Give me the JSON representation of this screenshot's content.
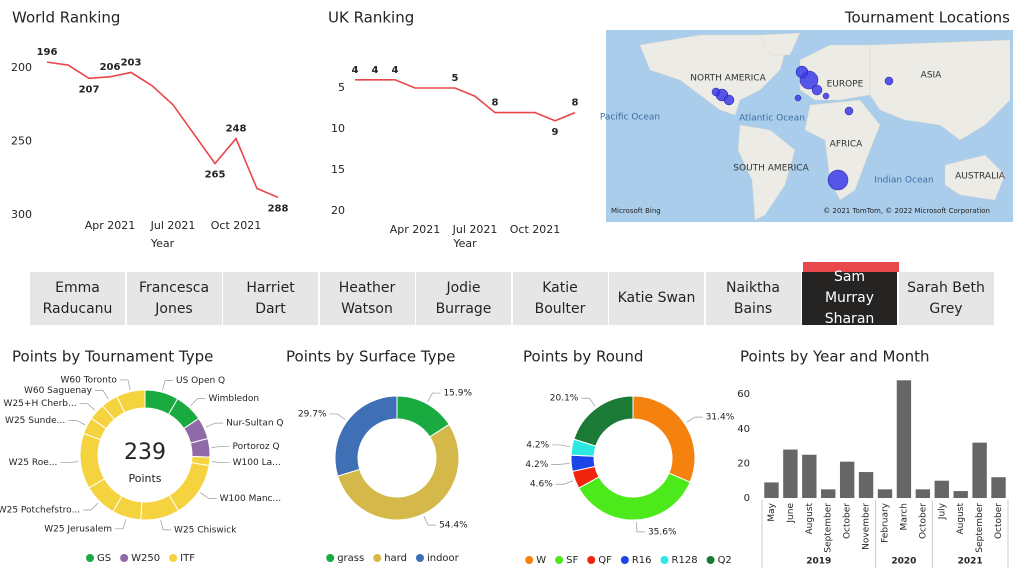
{
  "chart_data": [
    {
      "type": "line",
      "title": "World Ranking",
      "xlabel": "Year",
      "color": "#e8474b",
      "x": [
        "2021-01",
        "2021-02",
        "2021-03",
        "2021-04",
        "2021-05",
        "2021-06",
        "2021-07",
        "2021-08",
        "2021-09",
        "2021-10",
        "2021-11",
        "2021-12"
      ],
      "values": [
        196,
        198,
        207,
        206,
        203,
        212,
        225,
        245,
        265,
        248,
        282,
        288
      ],
      "value_labels": [
        "196",
        null,
        "207",
        "206",
        "203",
        null,
        null,
        null,
        "265",
        "248",
        null,
        "288"
      ],
      "xlim": [
        "2020-12",
        "2022-01"
      ],
      "xticks": [
        {
          "value": "2021-04",
          "label": "Apr 2021"
        },
        {
          "value": "2021-07",
          "label": "Jul 2021"
        },
        {
          "value": "2021-10",
          "label": "Oct 2021"
        }
      ],
      "ylim": [
        300,
        180
      ],
      "yticks": [
        200,
        250,
        300
      ],
      "grid": false
    },
    {
      "type": "line",
      "title": "UK Ranking",
      "xlabel": "Year",
      "color": "#e8474b",
      "x": [
        "2021-01",
        "2021-02",
        "2021-03",
        "2021-04",
        "2021-05",
        "2021-06",
        "2021-07",
        "2021-08",
        "2021-09",
        "2021-10",
        "2021-11",
        "2021-12"
      ],
      "values": [
        4,
        4,
        4,
        5,
        5,
        5,
        6,
        8,
        8,
        8,
        9,
        8
      ],
      "value_labels": [
        "4",
        "4",
        "4",
        null,
        null,
        "5",
        null,
        "8",
        null,
        null,
        "9",
        "8"
      ],
      "xlim": [
        "2020-12",
        "2022-01"
      ],
      "xticks": [
        {
          "value": "2021-04",
          "label": "Apr 2021"
        },
        {
          "value": "2021-07",
          "label": "Jul 2021"
        },
        {
          "value": "2021-10",
          "label": "Oct 2021"
        }
      ],
      "ylim": [
        21,
        1
      ],
      "yticks": [
        5,
        10,
        15,
        20
      ],
      "grid": false
    },
    {
      "type": "donut",
      "title": "Points by Tournament Type",
      "total": 239,
      "total_label": "Points",
      "categories": [
        "US Open Q",
        "Wimbledon",
        "Nur-Sultan Q",
        "Portoroz Q",
        "W100 La...",
        "W100 Manc...",
        "W25 Chiswick",
        "W25 Jerusalem",
        "W25 Potchefstro...",
        "W25 Roe...",
        "W25 Sunde...",
        "W25+H Cherb...",
        "W60 Saguenay",
        "W60 Toronto"
      ],
      "values": [
        20,
        17,
        13,
        11,
        5,
        33,
        23,
        17,
        20,
        33,
        10,
        10,
        10,
        17
      ],
      "colors": [
        "#1aab40",
        "#1aab40",
        "#8f6aa6",
        "#8f6aa6",
        "#f5d33f",
        "#f5d33f",
        "#f5d33f",
        "#f5d33f",
        "#f5d33f",
        "#f5d33f",
        "#f5d33f",
        "#f5d33f",
        "#f5d33f",
        "#f5d33f"
      ],
      "legend": [
        {
          "name": "GS",
          "color": "#1aab40"
        },
        {
          "name": "W250",
          "color": "#8f6aa6"
        },
        {
          "name": "ITF",
          "color": "#f5d33f"
        }
      ]
    },
    {
      "type": "donut",
      "title": "Points by Surface Type",
      "categories": [
        "grass",
        "hard",
        "indoor"
      ],
      "values": [
        15.9,
        54.4,
        29.7
      ],
      "value_labels": [
        "15.9%",
        "54.4%",
        "29.7%"
      ],
      "colors": [
        "#1aab40",
        "#d4b84a",
        "#3f6fb5"
      ]
    },
    {
      "type": "donut",
      "title": "Points by Round",
      "categories": [
        "W",
        "SF",
        "QF",
        "R16",
        "R128",
        "Q2"
      ],
      "values": [
        31.4,
        35.6,
        4.6,
        4.2,
        4.2,
        20.1
      ],
      "value_labels": [
        "31.4%",
        "35.6%",
        "4.6%",
        "4.2%",
        "4.2%",
        "20.1%"
      ],
      "colors": [
        "#f5820f",
        "#4cea1b",
        "#f0250e",
        "#1b43e8",
        "#2be8e0",
        "#1b7a35"
      ]
    },
    {
      "type": "bar",
      "title": "Points by Year and Month",
      "color": "#666666",
      "groups": [
        {
          "name": "2019",
          "categories": [
            "May",
            "June",
            "August",
            "September",
            "October",
            "November"
          ],
          "values": [
            9,
            28,
            25,
            5,
            21,
            15
          ]
        },
        {
          "name": "2020",
          "categories": [
            "February",
            "March",
            "October"
          ],
          "values": [
            5,
            68,
            5
          ]
        },
        {
          "name": "2021",
          "categories": [
            "July",
            "August",
            "September",
            "October"
          ],
          "values": [
            10,
            4,
            32,
            12
          ]
        }
      ],
      "ylim": [
        0,
        72
      ],
      "yticks": [
        0,
        20,
        40,
        60
      ],
      "grid": false
    }
  ],
  "slicer": {
    "items": [
      "Emma Raducanu",
      "Francesca Jones",
      "Harriet Dart",
      "Heather Watson",
      "Jodie Burrage",
      "Katie Boulter",
      "Katie Swan",
      "Naiktha Bains",
      "Sam Murray Sharan",
      "Sarah Beth Grey"
    ],
    "selected": "Sam Murray Sharan"
  },
  "map": {
    "title": "Tournament Locations",
    "labels": [
      "NORTH AMERICA",
      "EUROPE",
      "ASIA",
      "Pacific Ocean",
      "Atlantic Ocean",
      "AFRICA",
      "SOUTH AMERICA",
      "Indian Ocean",
      "AUSTRALIA"
    ],
    "logo": "Microsoft Bing",
    "attribution": "© 2021 TomTom, © 2022 Microsoft Corporation"
  }
}
